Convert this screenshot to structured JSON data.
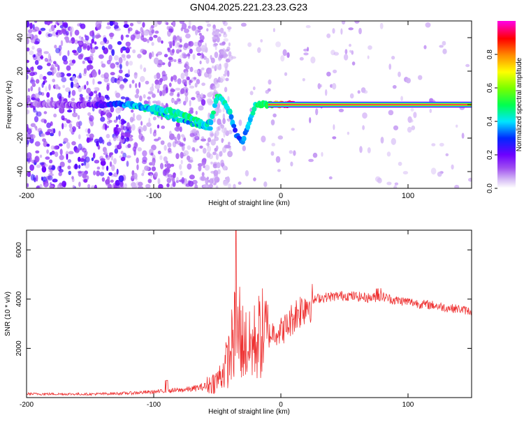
{
  "title": "GN04.2025.221.23.23.G23",
  "chart_data": [
    {
      "type": "heatmap",
      "title": "GN04.2025.221.23.23.G23",
      "xlabel": "Height of straight line (km)",
      "ylabel": "Frequency (Hz)",
      "xlim": [
        -200,
        150
      ],
      "ylim": [
        -50,
        50
      ],
      "xticks": [
        -200,
        -100,
        0,
        100
      ],
      "yticks": [
        -40,
        -20,
        0,
        20,
        40
      ],
      "colorbar": {
        "label": "Normalized spectral amplitude",
        "range": [
          0,
          1
        ],
        "ticks": [
          0.0,
          0.2,
          0.4,
          0.6,
          0.8
        ],
        "tick_labels": [
          "0.0",
          "0.2",
          "0.4",
          "0.6",
          "0.8"
        ],
        "colormap": [
          "#ffffff",
          "#d0b0f0",
          "#8a2be2",
          "#0000ff",
          "#00ffff",
          "#00ff00",
          "#ffff00",
          "#ff8000",
          "#ff0000",
          "#ff00ff"
        ]
      },
      "ridge": {
        "description_x": [
          -200,
          -150,
          -120,
          -100,
          -80,
          -70,
          -60,
          -55,
          -50,
          -45,
          -40,
          -35,
          -30,
          -20,
          -10,
          0,
          10,
          150
        ],
        "frequency_hz": [
          0,
          0,
          0,
          -2,
          -5,
          -8,
          -12,
          -10,
          5,
          2,
          -5,
          -18,
          -22,
          0,
          0,
          0,
          0,
          0
        ],
        "amplitude": [
          0.1,
          0.15,
          0.35,
          0.4,
          0.45,
          0.45,
          0.4,
          0.4,
          0.45,
          0.4,
          0.4,
          0.3,
          0.3,
          0.45,
          0.5,
          0.8,
          0.95,
          0.95
        ]
      }
    },
    {
      "type": "line",
      "xlabel": "Height of straight line (km)",
      "ylabel": "SNR (10 * v/v)",
      "xlim": [
        -200,
        150
      ],
      "ylim": [
        0,
        6800
      ],
      "xticks": [
        -200,
        -100,
        0,
        100
      ],
      "yticks": [
        2000,
        4000,
        6000
      ],
      "color": "#ee3333",
      "envelope_x": [
        -200,
        -150,
        -120,
        -100,
        -80,
        -70,
        -60,
        -50,
        -45,
        -40,
        -38,
        -36,
        -35,
        -30,
        -25,
        -20,
        -15,
        -10,
        -5,
        0,
        5,
        10,
        20,
        30,
        40,
        50,
        60,
        70,
        80,
        90,
        100,
        110,
        120,
        130,
        140,
        150
      ],
      "envelope_y": [
        150,
        140,
        180,
        230,
        300,
        350,
        450,
        700,
        1100,
        1700,
        2300,
        2600,
        2500,
        2300,
        2000,
        2300,
        2600,
        2500,
        2700,
        2700,
        2900,
        3300,
        3800,
        4050,
        4100,
        4150,
        4100,
        4050,
        4100,
        3950,
        3900,
        3800,
        3750,
        3650,
        3600,
        3500
      ]
    }
  ]
}
